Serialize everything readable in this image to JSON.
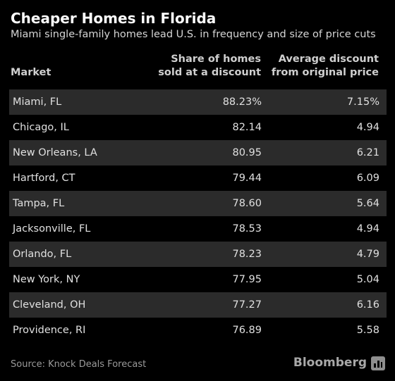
{
  "chart_data": {
    "type": "table",
    "title": "Cheaper Homes in Florida",
    "subtitle": "Miami single-family homes lead U.S. in frequency and size of price cuts",
    "columns": {
      "market": "Market",
      "share_line1": "Share of homes",
      "share_line2": "sold at a discount",
      "discount_line1": "Average discount",
      "discount_line2": "from original price"
    },
    "rows": [
      {
        "market": "Miami, FL",
        "share": "88.23%",
        "discount": "7.15%"
      },
      {
        "market": "Chicago, IL",
        "share": "82.14",
        "discount": "4.94"
      },
      {
        "market": "New Orleans, LA",
        "share": "80.95",
        "discount": "6.21"
      },
      {
        "market": "Hartford, CT",
        "share": "79.44",
        "discount": "6.09"
      },
      {
        "market": "Tampa, FL",
        "share": "78.60",
        "discount": "5.64"
      },
      {
        "market": "Jacksonville, FL",
        "share": "78.53",
        "discount": "4.94"
      },
      {
        "market": "Orlando, FL",
        "share": "78.23",
        "discount": "4.79"
      },
      {
        "market": "New York, NY",
        "share": "77.95",
        "discount": "5.04"
      },
      {
        "market": "Cleveland, OH",
        "share": "77.27",
        "discount": "6.16"
      },
      {
        "market": "Providence, RI",
        "share": "76.89",
        "discount": "5.58"
      }
    ],
    "source": "Source: Knock Deals Forecast",
    "brand": "Bloomberg",
    "colors": {
      "background": "#000000",
      "row_stripe": "#2b2b2b",
      "title": "#ffffff"
    }
  }
}
